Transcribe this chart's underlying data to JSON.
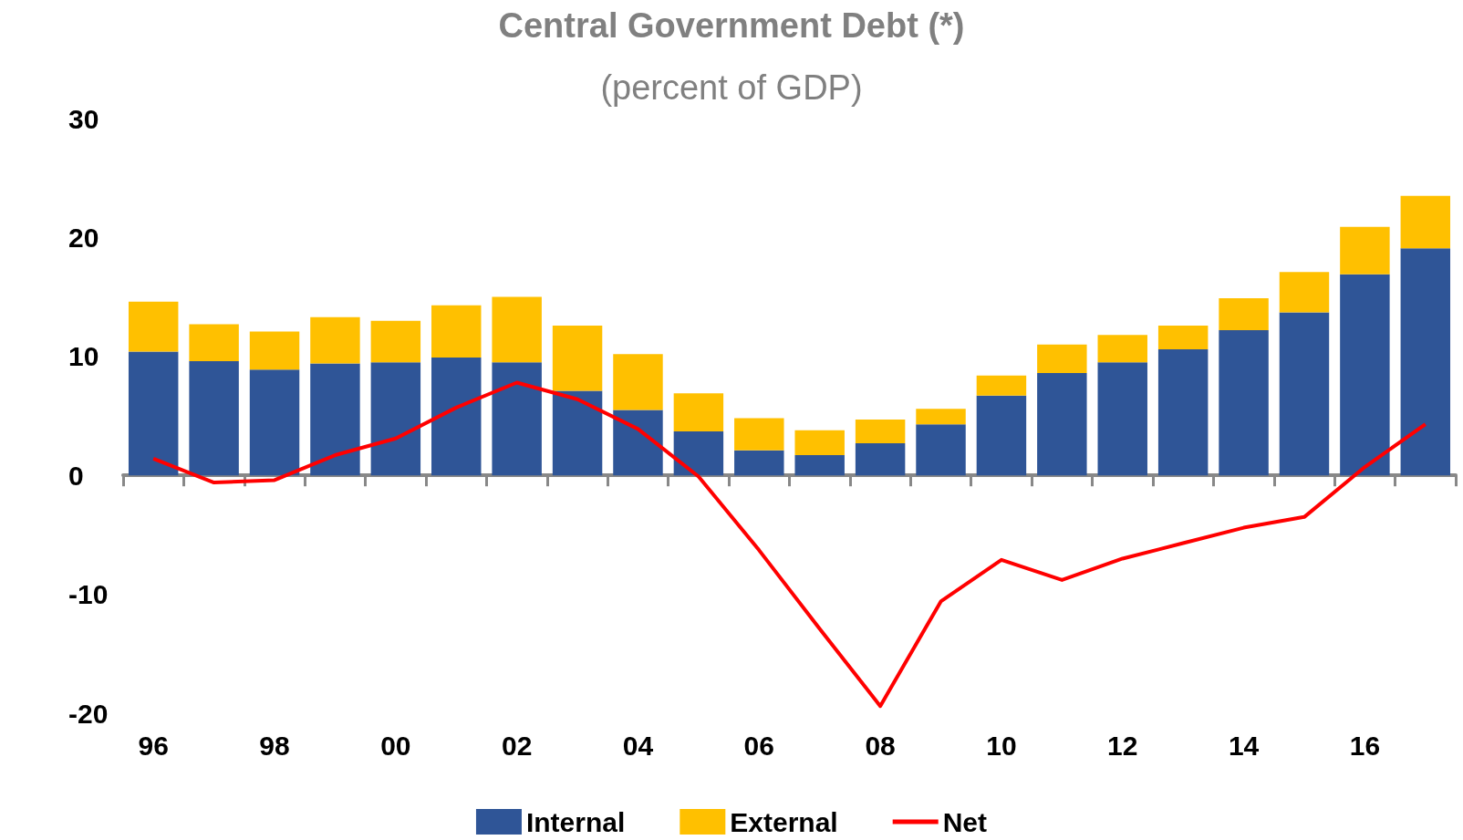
{
  "chart_data": {
    "type": "bar",
    "title": "Central Government Debt (*)",
    "subtitle": "(percent of GDP)",
    "categories": [
      "96",
      null,
      "98",
      null,
      "00",
      null,
      "02",
      null,
      "04",
      null,
      "06",
      null,
      "08",
      null,
      "10",
      null,
      "12",
      null,
      "14",
      null,
      "16",
      null
    ],
    "stacked": true,
    "series": [
      {
        "name": "Internal",
        "color": "#2f5597",
        "values": [
          10.4,
          9.6,
          8.9,
          9.4,
          9.5,
          9.9,
          9.5,
          7.1,
          5.5,
          3.7,
          2.1,
          1.7,
          2.7,
          4.3,
          6.7,
          8.6,
          9.5,
          10.6,
          12.2,
          13.7,
          16.9,
          19.1
        ]
      },
      {
        "name": "External",
        "color": "#ffc000",
        "values": [
          4.2,
          3.1,
          3.2,
          3.9,
          3.5,
          4.4,
          5.5,
          5.5,
          4.7,
          3.2,
          2.7,
          2.1,
          2.0,
          1.3,
          1.7,
          2.4,
          2.3,
          2.0,
          2.7,
          3.4,
          4.0,
          4.4
        ]
      },
      {
        "name": "Net",
        "type": "line",
        "color": "#ff0000",
        "values": [
          1.4,
          -0.6,
          -0.4,
          1.7,
          3.1,
          5.7,
          7.8,
          6.4,
          3.9,
          -0.1,
          -6.3,
          -12.9,
          -19.4,
          -10.6,
          -7.1,
          -8.8,
          -7.0,
          -5.7,
          -4.4,
          -3.5,
          0.7,
          4.3
        ]
      }
    ],
    "ylim": [
      -20,
      30
    ],
    "yticks": [
      -20,
      -10,
      0,
      10,
      20,
      30
    ],
    "legend": "bottom",
    "marker": "none",
    "line_style": "solid"
  }
}
